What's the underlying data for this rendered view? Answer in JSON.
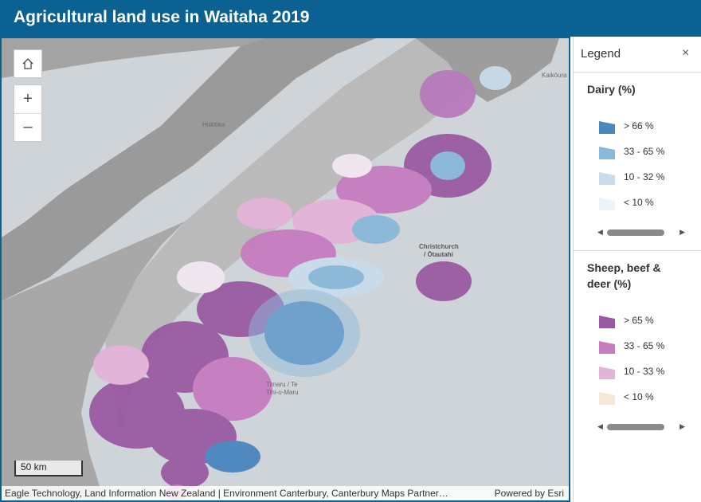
{
  "header": {
    "title": "Agricultural land use in Waitaha 2019"
  },
  "map": {
    "place_labels": [
      "Hokitika",
      "Christchurch",
      "/ Ōtautahi",
      "Timaru / Te",
      "Tihi-o-Maru",
      "Kaikōura"
    ],
    "scale_label": "50 km",
    "attribution": "Eagle Technology, Land Information New Zealand | Environment Canterbury, Canterbury Maps Partner…",
    "powered_by": "Powered by Esri",
    "controls": {
      "home_icon": "home-icon",
      "zoom_in": "+",
      "zoom_out": "–"
    },
    "colors": {
      "sea": "#cfd4d8",
      "mountains": "#9c9c9c",
      "hills": "#bdbdbd",
      "plains": "#d9dcdf"
    }
  },
  "legend": {
    "title": "Legend",
    "close_icon": "×",
    "layers": [
      {
        "title": "Dairy (%)",
        "items": [
          {
            "label": "> 66 %",
            "color": "#4a86bf"
          },
          {
            "label": "33 - 65 %",
            "color": "#8ab8d9"
          },
          {
            "label": "10 - 32 %",
            "color": "#c9dcea"
          },
          {
            "label": "< 10 %",
            "color": "#eef2fa"
          }
        ]
      },
      {
        "title": "Sheep, beef & deer (%)",
        "items": [
          {
            "label": "> 65 %",
            "color": "#9a5aa3"
          },
          {
            "label": "33 - 65 %",
            "color": "#c67cc0"
          },
          {
            "label": "10 - 33 %",
            "color": "#e4b3d8"
          },
          {
            "label": "< 10 %",
            "color": "#f6e7d8"
          }
        ]
      }
    ]
  }
}
